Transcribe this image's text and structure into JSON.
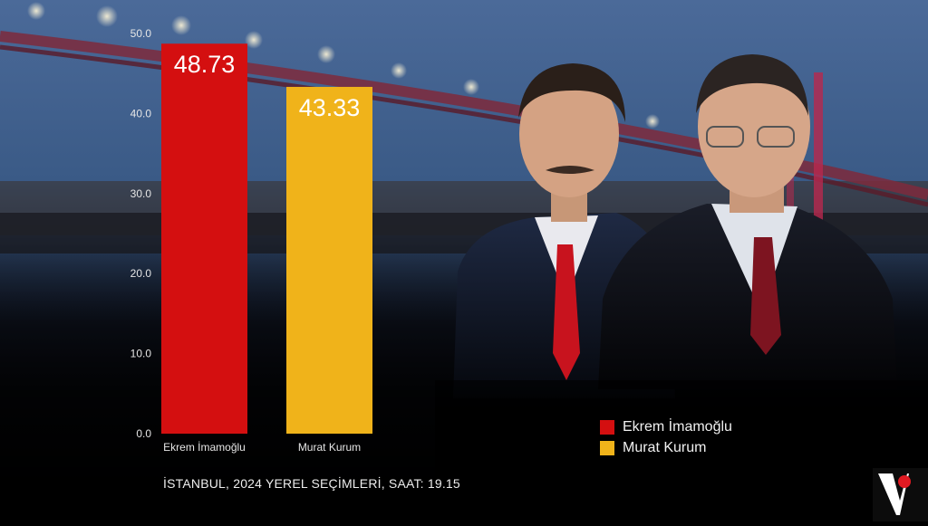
{
  "chart_data": {
    "type": "bar",
    "categories": [
      "Ekrem İmamoğlu",
      "Murat Kurum"
    ],
    "values": [
      48.73,
      43.33
    ],
    "value_labels": [
      "48.73",
      "43.33"
    ],
    "colors": [
      "#d40f10",
      "#f0b31a"
    ],
    "ylim": [
      0,
      50
    ],
    "yticks": [
      "0.0",
      "10.0",
      "20.0",
      "30.0",
      "40.0",
      "50.0"
    ],
    "grid": false,
    "legend_position": "bottom-right",
    "legend": [
      {
        "label": "Ekrem İmamoğlu",
        "color": "#d40f10"
      },
      {
        "label": "Murat Kurum",
        "color": "#f0b31a"
      }
    ]
  },
  "caption": "İSTANBUL, 2024 YEREL SEÇİMLERİ, SAAT: 19.15",
  "icons": {
    "brand_logo": "v-logo-icon",
    "background": "bridge-night-photo",
    "candidates": "candidate-portraits-photo"
  }
}
